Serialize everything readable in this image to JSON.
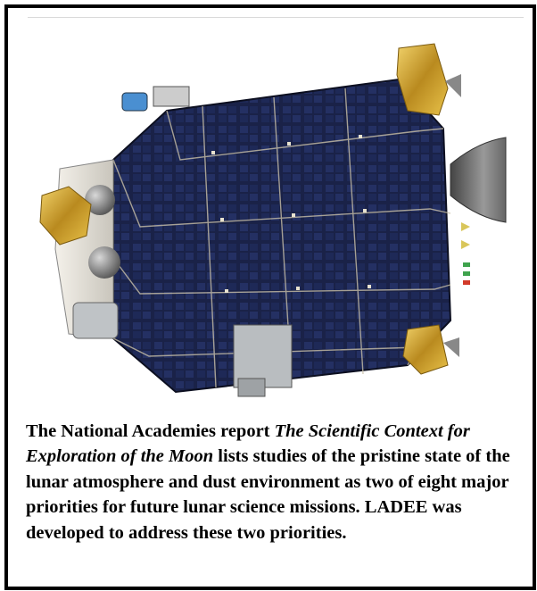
{
  "figure": {
    "image_description_icon": "ladee-spacecraft-illustration"
  },
  "caption": {
    "part1": "The National Academies report ",
    "title": "The Scientific Context for Exploration of the Moon",
    "part2": " lists studies of the pristine state of the lunar atmosphere and dust environment as two of eight major priorities for future lunar science missions. LADEE was developed to address these two priorities."
  }
}
